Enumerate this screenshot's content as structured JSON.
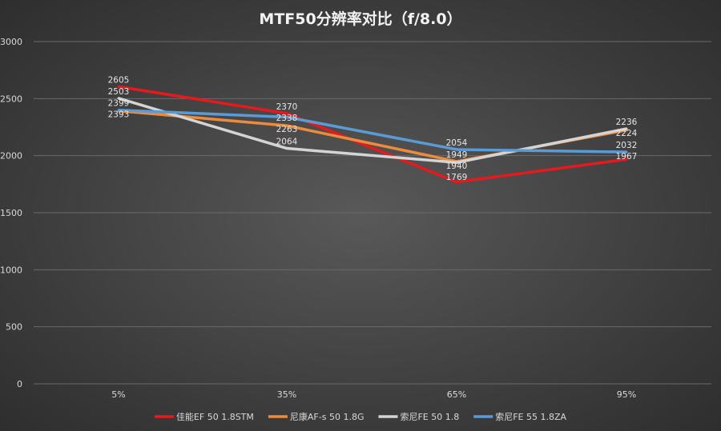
{
  "chart_data": {
    "type": "line",
    "title": "MTF50分辨率对比（f/8.0）",
    "categories": [
      "5%",
      "35%",
      "65%",
      "95%"
    ],
    "ylim": [
      0,
      3000
    ],
    "yticks": [
      0,
      500,
      1000,
      1500,
      2000,
      2500,
      3000
    ],
    "grid": true,
    "legend_position": "bottom",
    "data_labels": true,
    "series": [
      {
        "name": "佳能EF 50 1.8STM",
        "color": "#e8191c",
        "values": [
          2605,
          2370,
          1769,
          1967
        ]
      },
      {
        "name": "尼康AF-s 50 1.8G",
        "color": "#ed8b3c",
        "values": [
          2393,
          2263,
          1949,
          2224
        ]
      },
      {
        "name": "索尼FE 50 1.8",
        "color": "#d4d4d4",
        "values": [
          2503,
          2064,
          1940,
          2236
        ]
      },
      {
        "name": "索尼FE 55 1.8ZA",
        "color": "#5b9bd5",
        "values": [
          2399,
          2338,
          2054,
          2032
        ]
      }
    ]
  }
}
